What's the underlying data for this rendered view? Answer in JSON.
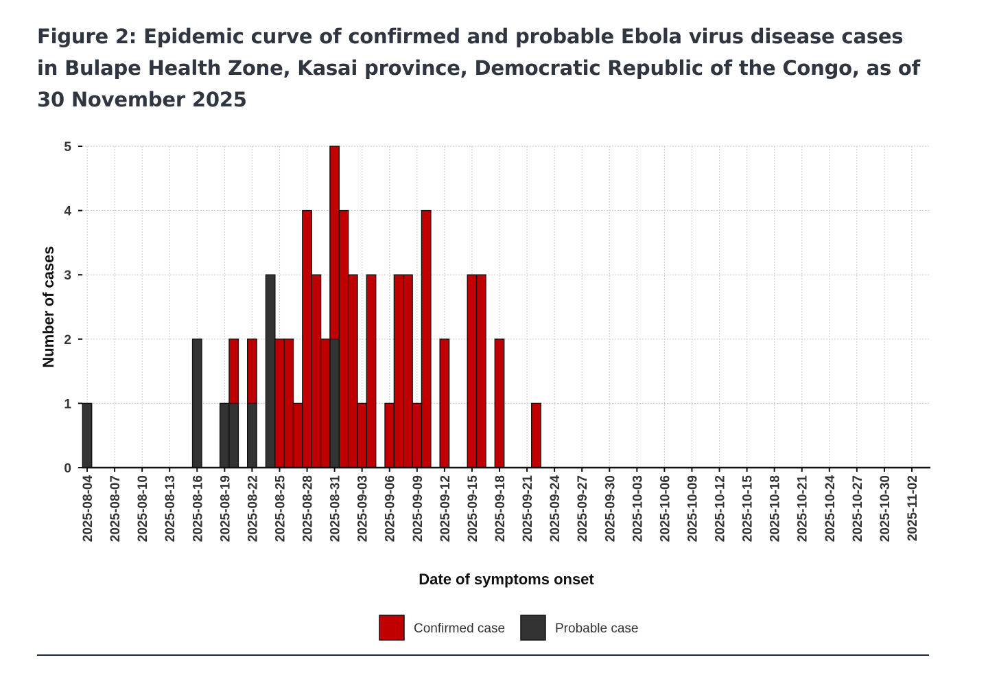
{
  "figure": {
    "title": "Figure 2: Epidemic curve of confirmed and probable Ebola virus disease cases in Bulape Health Zone, Kasai province, Democratic Republic of the Congo, as of 30 November 2025"
  },
  "colors": {
    "confirmed": "#c00000",
    "probable": "#333333",
    "grid": "#cfcfcf",
    "axis": "#111111",
    "text": "#2f3640"
  },
  "chart_data": {
    "type": "bar",
    "stacked": true,
    "title": "Epidemic curve of confirmed and probable Ebola virus disease cases in Bulape Health Zone, Kasai province, Democratic Republic of the Congo, as of 30 November 2025",
    "xlabel": "Date of symptoms onset",
    "ylabel": "Number of cases",
    "ylim": [
      0,
      5
    ],
    "yticks": [
      0,
      1,
      2,
      3,
      4,
      5
    ],
    "x_start": "2025-08-04",
    "x_end": "2025-11-02",
    "xtick_labels": [
      "2025-08-04",
      "2025-08-07",
      "2025-08-10",
      "2025-08-13",
      "2025-08-16",
      "2025-08-19",
      "2025-08-22",
      "2025-08-25",
      "2025-08-28",
      "2025-08-31",
      "2025-09-03",
      "2025-09-06",
      "2025-09-09",
      "2025-09-12",
      "2025-09-15",
      "2025-09-18",
      "2025-09-21",
      "2025-09-24",
      "2025-09-27",
      "2025-09-30",
      "2025-10-03",
      "2025-10-06",
      "2025-10-09",
      "2025-10-12",
      "2025-10-15",
      "2025-10-18",
      "2025-10-21",
      "2025-10-24",
      "2025-10-27",
      "2025-10-30",
      "2025-11-02"
    ],
    "legend": {
      "position": "bottom",
      "entries": [
        "Confirmed case",
        "Probable case"
      ]
    },
    "series": [
      {
        "name": "Probable case",
        "color": "#333333",
        "points": [
          {
            "date": "2025-08-04",
            "value": 1
          },
          {
            "date": "2025-08-16",
            "value": 2
          },
          {
            "date": "2025-08-19",
            "value": 1
          },
          {
            "date": "2025-08-20",
            "value": 1
          },
          {
            "date": "2025-08-22",
            "value": 1
          },
          {
            "date": "2025-08-24",
            "value": 3
          },
          {
            "date": "2025-08-31",
            "value": 2
          }
        ]
      },
      {
        "name": "Confirmed case",
        "color": "#c00000",
        "points": [
          {
            "date": "2025-08-20",
            "value": 1
          },
          {
            "date": "2025-08-22",
            "value": 1
          },
          {
            "date": "2025-08-25",
            "value": 2
          },
          {
            "date": "2025-08-26",
            "value": 2
          },
          {
            "date": "2025-08-27",
            "value": 1
          },
          {
            "date": "2025-08-28",
            "value": 4
          },
          {
            "date": "2025-08-29",
            "value": 3
          },
          {
            "date": "2025-08-30",
            "value": 2
          },
          {
            "date": "2025-08-31",
            "value": 3
          },
          {
            "date": "2025-09-01",
            "value": 4
          },
          {
            "date": "2025-09-02",
            "value": 3
          },
          {
            "date": "2025-09-03",
            "value": 1
          },
          {
            "date": "2025-09-04",
            "value": 3
          },
          {
            "date": "2025-09-06",
            "value": 1
          },
          {
            "date": "2025-09-07",
            "value": 3
          },
          {
            "date": "2025-09-08",
            "value": 3
          },
          {
            "date": "2025-09-09",
            "value": 1
          },
          {
            "date": "2025-09-10",
            "value": 4
          },
          {
            "date": "2025-09-12",
            "value": 2
          },
          {
            "date": "2025-09-15",
            "value": 3
          },
          {
            "date": "2025-09-16",
            "value": 3
          },
          {
            "date": "2025-09-18",
            "value": 2
          },
          {
            "date": "2025-09-22",
            "value": 1
          }
        ]
      }
    ]
  }
}
